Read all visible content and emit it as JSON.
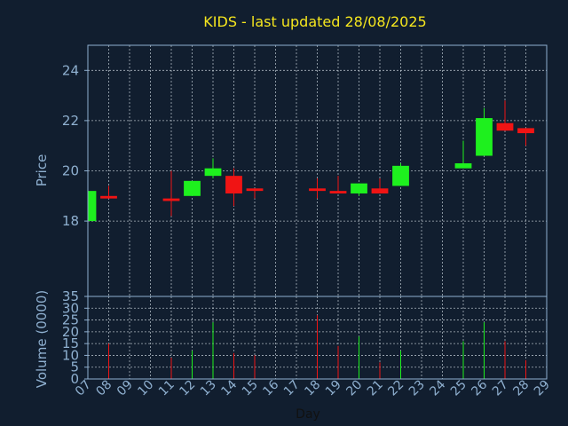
{
  "chart_data": {
    "type": "candlestick",
    "title": "KIDS - last updated 28/08/2025",
    "ylabel_price": "Price",
    "ylabel_volume": "Volume (0000)",
    "xlabel": "Day",
    "price_ylim": [
      15,
      25
    ],
    "price_ticks": [
      "18",
      "20",
      "22",
      "24"
    ],
    "volume_ylim": [
      0,
      35
    ],
    "volume_ticks": [
      "0",
      "5",
      "10",
      "15",
      "20",
      "25",
      "30",
      "35"
    ],
    "x_ticks": [
      "07",
      "08",
      "09",
      "10",
      "11",
      "12",
      "13",
      "14",
      "15",
      "16",
      "17",
      "18",
      "19",
      "20",
      "21",
      "22",
      "23",
      "24",
      "25",
      "26",
      "27",
      "28",
      "29"
    ],
    "grid": true,
    "up_color": "#1ef01e",
    "down_color": "#f01414",
    "candles": [
      {
        "day": "07",
        "open": 18.0,
        "close": 19.2,
        "high": 19.2,
        "low": 18.0,
        "volume": 0
      },
      {
        "day": "08",
        "open": 19.0,
        "close": 18.9,
        "high": 19.4,
        "low": 18.9,
        "volume": 15
      },
      {
        "day": "11",
        "open": 18.9,
        "close": 18.8,
        "high": 20.0,
        "low": 18.2,
        "volume": 9
      },
      {
        "day": "12",
        "open": 19.0,
        "close": 19.6,
        "high": 19.6,
        "low": 19.0,
        "volume": 12
      },
      {
        "day": "13",
        "open": 19.8,
        "close": 20.1,
        "high": 20.5,
        "low": 19.7,
        "volume": 24
      },
      {
        "day": "14",
        "open": 19.8,
        "close": 19.1,
        "high": 20.1,
        "low": 18.6,
        "volume": 11
      },
      {
        "day": "15",
        "open": 19.3,
        "close": 19.2,
        "high": 19.3,
        "low": 18.9,
        "volume": 10
      },
      {
        "day": "18",
        "open": 19.3,
        "close": 19.2,
        "high": 19.7,
        "low": 18.9,
        "volume": 27
      },
      {
        "day": "19",
        "open": 19.2,
        "close": 19.1,
        "high": 19.8,
        "low": 19.1,
        "volume": 14
      },
      {
        "day": "20",
        "open": 19.1,
        "close": 19.5,
        "high": 19.5,
        "low": 19.0,
        "volume": 18
      },
      {
        "day": "21",
        "open": 19.3,
        "close": 19.1,
        "high": 19.7,
        "low": 19.1,
        "volume": 7
      },
      {
        "day": "22",
        "open": 19.4,
        "close": 20.2,
        "high": 20.3,
        "low": 19.4,
        "volume": 12
      },
      {
        "day": "25",
        "open": 20.1,
        "close": 20.3,
        "high": 21.2,
        "low": 20.1,
        "volume": 16
      },
      {
        "day": "26",
        "open": 20.6,
        "close": 22.1,
        "high": 22.5,
        "low": 20.6,
        "volume": 24
      },
      {
        "day": "27",
        "open": 21.9,
        "close": 21.6,
        "high": 22.8,
        "low": 21.6,
        "volume": 16
      },
      {
        "day": "28",
        "open": 21.7,
        "close": 21.5,
        "high": 21.7,
        "low": 21.0,
        "volume": 8
      }
    ]
  }
}
